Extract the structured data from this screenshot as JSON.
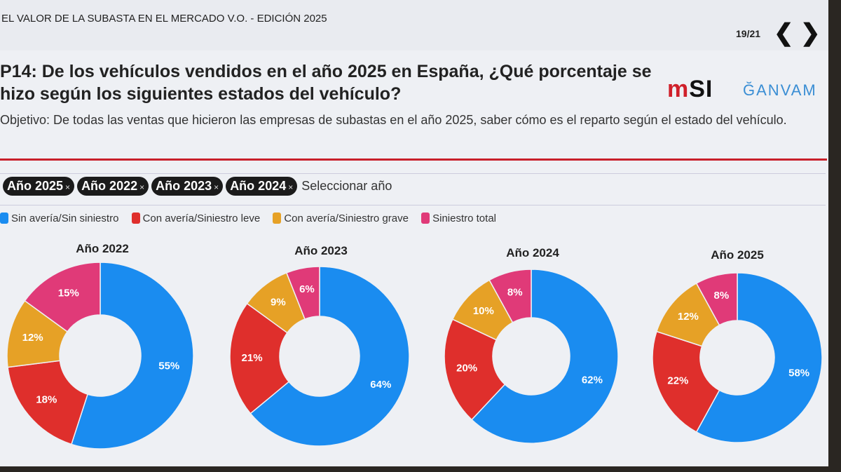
{
  "header": {
    "doc_title": "EL VALOR DE LA SUBASTA EN EL MERCADO V.O. - EDICIÓN 2025",
    "pager": "19/21",
    "prev": "❮",
    "next": "❯"
  },
  "question": "P14: De los vehículos vendidos en el año 2025 en España, ¿Qué porcentaje se hizo según los siguientes estados del vehículo?",
  "logos": {
    "msi_red": "m",
    "msi_black": "SI",
    "ganvam": "ĞANVAM"
  },
  "objective": "Objetivo: De todas las ventas que hicieron las empresas de subastas en el año 2025, saber cómo es el reparto según el estado del vehículo.",
  "filter": {
    "chips": [
      "Año 2025",
      "Año 2022",
      "Año 2023",
      "Año 2024"
    ],
    "remove": "×",
    "placeholder": "Seleccionar año"
  },
  "colors": {
    "Sin avería/Sin siniestro": "#1a8cf0",
    "Con avería/Siniestro leve": "#df2f2c",
    "Con avería/Siniestro grave": "#e6a126",
    "Siniestro total": "#e03a78"
  },
  "chart_data": [
    {
      "type": "pie",
      "title": "Año 2022",
      "categories": [
        "Sin avería/Sin siniestro",
        "Con avería/Siniestro leve",
        "Con avería/Siniestro grave",
        "Siniestro total"
      ],
      "values": [
        55,
        18,
        12,
        15
      ],
      "labels": [
        "55%",
        "18%",
        "12%",
        "15%"
      ],
      "legend": "top"
    },
    {
      "type": "pie",
      "title": "Año 2023",
      "categories": [
        "Sin avería/Sin siniestro",
        "Con avería/Siniestro leve",
        "Con avería/Siniestro grave",
        "Siniestro total"
      ],
      "values": [
        64,
        21,
        9,
        6
      ],
      "labels": [
        "64%",
        "21%",
        "9%",
        "6%"
      ],
      "legend": "top"
    },
    {
      "type": "pie",
      "title": "Año 2024",
      "categories": [
        "Sin avería/Sin siniestro",
        "Con avería/Siniestro leve",
        "Con avería/Siniestro grave",
        "Siniestro total"
      ],
      "values": [
        62,
        20,
        10,
        8
      ],
      "labels": [
        "62%",
        "20%",
        "10%",
        "8%"
      ],
      "legend": "top"
    },
    {
      "type": "pie",
      "title": "Año 2025",
      "categories": [
        "Sin avería/Sin siniestro",
        "Con avería/Siniestro leve",
        "Con avería/Siniestro grave",
        "Siniestro total"
      ],
      "values": [
        58,
        22,
        12,
        8
      ],
      "labels": [
        "58%",
        "22%",
        "12%",
        "8%"
      ],
      "legend": "top"
    }
  ]
}
